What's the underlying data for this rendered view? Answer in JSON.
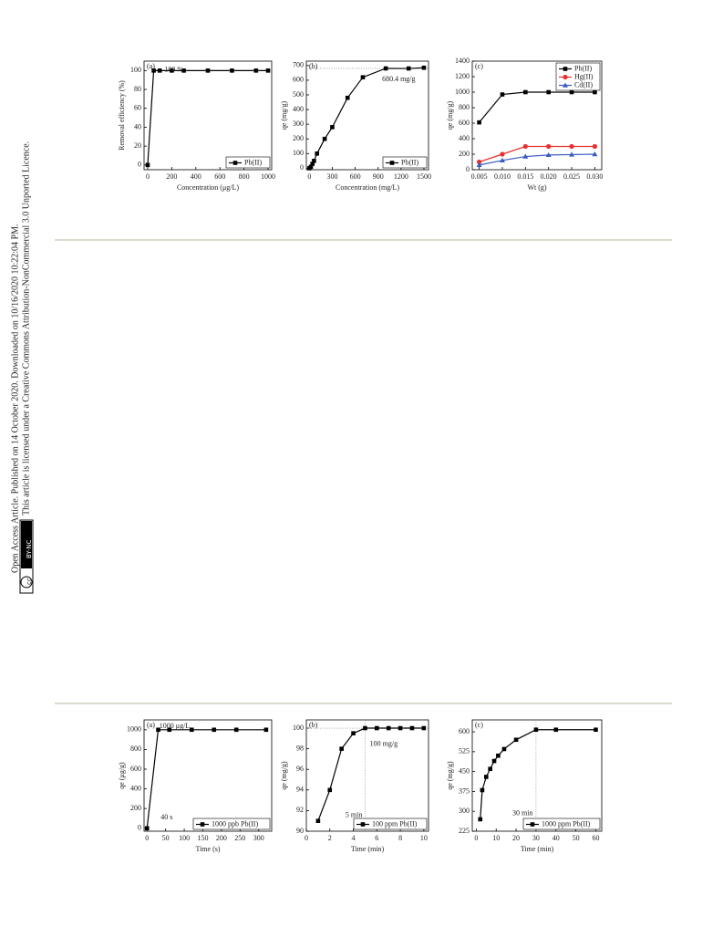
{
  "sidebar": {
    "line1": "Open Access Article. Published on 14 October 2020. Downloaded on 10/16/2020 10:22:04 PM.",
    "line2": "This article is licensed under a Creative Commons Attribution-NonCommercial 3.0 Unported Licence.",
    "badge": "BY-NC"
  },
  "chart_data": [
    {
      "type": "line",
      "panel": "(a)",
      "x_label": "Concentration (μg/L)",
      "y_label": "Removal efficiency (%)",
      "x": [
        0,
        50,
        100,
        200,
        300,
        500,
        700,
        900,
        1000
      ],
      "series": [
        {
          "name": "Pb(II)",
          "color": "#000000",
          "marker": "square",
          "values": [
            0,
            100,
            100,
            100,
            100,
            100,
            100,
            100,
            100
          ]
        }
      ],
      "xlim": [
        -30,
        1030
      ],
      "xticks": [
        0,
        200,
        400,
        600,
        800,
        1000
      ],
      "ylim": [
        -5,
        110
      ],
      "yticks": [
        0,
        20,
        40,
        60,
        80,
        100
      ],
      "legend": "lower right",
      "annotations": [
        "100 %"
      ]
    },
    {
      "type": "line",
      "panel": "(b)",
      "x_label": "Concentration (mg/L)",
      "y_label": "qe (mg/g)",
      "x": [
        0,
        20,
        40,
        60,
        100,
        200,
        300,
        500,
        700,
        1000,
        1300,
        1500
      ],
      "series": [
        {
          "name": "Pb(II)",
          "color": "#000000",
          "marker": "square",
          "values": [
            0,
            10,
            30,
            50,
            100,
            200,
            280,
            480,
            620,
            680.4,
            680,
            685
          ]
        }
      ],
      "xlim": [
        -40,
        1560
      ],
      "xticks": [
        0,
        300,
        600,
        900,
        1200,
        1500
      ],
      "ylim": [
        -10,
        730
      ],
      "yticks": [
        0,
        100,
        200,
        300,
        400,
        500,
        600,
        700
      ],
      "hlines": [
        680.4
      ],
      "legend": "lower right",
      "annotations": [
        "680.4 mg/g"
      ]
    },
    {
      "type": "line",
      "panel": "(c)",
      "x_label": "Wt (g)",
      "y_label": "qe (mg/g)",
      "x": [
        0.005,
        0.01,
        0.015,
        0.02,
        0.025,
        0.03
      ],
      "series": [
        {
          "name": "Pb(II)",
          "color": "#000000",
          "marker": "square",
          "values": [
            610,
            970,
            1000,
            1000,
            1000,
            1000
          ]
        },
        {
          "name": "Hg(II)",
          "color": "#e8312f",
          "marker": "circle",
          "values": [
            100,
            200,
            300,
            300,
            300,
            300
          ]
        },
        {
          "name": "Cd(II)",
          "color": "#3a5bbf",
          "marker": "triangle",
          "values": [
            60,
            120,
            170,
            190,
            195,
            200
          ]
        }
      ],
      "xlim": [
        0.0035,
        0.0315
      ],
      "xticks": [
        0.005,
        {
          "value": 0.01,
          "label": "0.010"
        },
        0.015,
        {
          "value": 0.02,
          "label": "0.020"
        },
        0.025,
        {
          "value": 0.03,
          "label": "0.030"
        }
      ],
      "ylim": [
        0,
        1400
      ],
      "yticks": [
        0,
        200,
        400,
        600,
        800,
        1000,
        1200,
        1400
      ],
      "legend": "upper right",
      "annotations": []
    },
    {
      "type": "line",
      "panel": "(a)",
      "x_label": "Time (s)",
      "y_label": "qe (μg/g)",
      "x": [
        0,
        30,
        60,
        120,
        180,
        240,
        320
      ],
      "series": [
        {
          "name": "1000 ppb Pb(II)",
          "color": "#000000",
          "marker": "square",
          "values": [
            0,
            1000,
            1000,
            1000,
            1000,
            1000,
            1000
          ]
        }
      ],
      "xlim": [
        -8,
        335
      ],
      "xticks": [
        0,
        50,
        100,
        150,
        200,
        250,
        300
      ],
      "ylim": [
        -30,
        1100
      ],
      "yticks": [
        0,
        200,
        400,
        600,
        800,
        1000
      ],
      "legend": "lower right",
      "annotations": [
        "1000 μg/L",
        "40 s"
      ]
    },
    {
      "type": "line",
      "panel": "(b)",
      "x_label": "Time (min)",
      "y_label": "qe (mg/g)",
      "x": [
        1,
        2,
        3,
        4,
        5,
        6,
        7,
        8,
        9,
        10
      ],
      "series": [
        {
          "name": "100 ppm Pb(II)",
          "color": "#000000",
          "marker": "square",
          "values": [
            91,
            94,
            98,
            99.5,
            100,
            100,
            100,
            100,
            100,
            100
          ]
        }
      ],
      "xlim": [
        0,
        10.4
      ],
      "xticks": [
        0,
        2,
        4,
        6,
        8,
        10
      ],
      "ylim": [
        90,
        100.8
      ],
      "yticks": [
        90,
        92,
        94,
        96,
        98,
        100
      ],
      "hlines": [
        100
      ],
      "vlines": [
        5
      ],
      "legend": "lower right",
      "annotations": [
        "100 mg/g",
        "5 min"
      ]
    },
    {
      "type": "line",
      "panel": "(c)",
      "x_label": "Time (min)",
      "y_label": "qe (mg/g)",
      "x": [
        2,
        3,
        5,
        7,
        9,
        11,
        14,
        20,
        30,
        40,
        60
      ],
      "series": [
        {
          "name": "1000 ppm Pb(II)",
          "color": "#000000",
          "marker": "square",
          "values": [
            270,
            380,
            430,
            460,
            490,
            510,
            535,
            570,
            608,
            608,
            608
          ]
        }
      ],
      "xlim": [
        -2,
        63
      ],
      "xticks": [
        0,
        10,
        20,
        30,
        40,
        50,
        60
      ],
      "ylim": [
        225,
        645
      ],
      "yticks": [
        225,
        300,
        375,
        450,
        525,
        600
      ],
      "vlines": [
        30
      ],
      "legend": "lower right",
      "annotations": [
        "30 min"
      ]
    }
  ]
}
